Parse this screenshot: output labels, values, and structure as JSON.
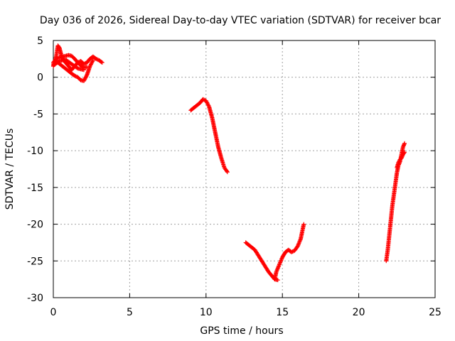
{
  "chart_data": {
    "type": "scatter",
    "title": "Day 036 of 2026, Sidereal Day-to-day VTEC variation (SDTVAR) for receiver bcar",
    "xlabel": "GPS time / hours",
    "ylabel": "SDTVAR / TECUs",
    "xlim": [
      0,
      25
    ],
    "ylim": [
      -30,
      5
    ],
    "xticks": [
      "0",
      "5",
      "10",
      "15",
      "20",
      "25"
    ],
    "yticks": [
      "5",
      "0",
      "-5",
      "-10",
      "-15",
      "-20",
      "-25",
      "-30"
    ],
    "grid": true,
    "marker": "plus",
    "color": "#ff0000",
    "segments": [
      [
        [
          0.0,
          1.5
        ],
        [
          0.1,
          2.0
        ],
        [
          0.2,
          3.0
        ],
        [
          0.3,
          4.3
        ],
        [
          0.4,
          4.0
        ],
        [
          0.5,
          3.2
        ],
        [
          0.6,
          2.5
        ],
        [
          0.8,
          2.0
        ],
        [
          1.0,
          1.5
        ],
        [
          1.2,
          1.0
        ],
        [
          1.4,
          1.5
        ],
        [
          1.6,
          2.0
        ],
        [
          1.8,
          2.2
        ],
        [
          2.0,
          1.8
        ],
        [
          2.2,
          2.0
        ],
        [
          2.4,
          2.5
        ],
        [
          2.6,
          2.8
        ],
        [
          2.8,
          2.5
        ],
        [
          3.0,
          2.3
        ],
        [
          3.2,
          2.0
        ]
      ],
      [
        [
          0.0,
          2.0
        ],
        [
          0.2,
          2.5
        ],
        [
          0.4,
          2.7
        ],
        [
          0.6,
          2.8
        ],
        [
          0.8,
          2.9
        ],
        [
          1.0,
          3.0
        ],
        [
          1.2,
          2.9
        ],
        [
          1.4,
          2.5
        ],
        [
          1.6,
          2.0
        ],
        [
          1.8,
          1.6
        ],
        [
          2.0,
          1.3
        ],
        [
          2.2,
          1.4
        ]
      ],
      [
        [
          0.0,
          1.8
        ],
        [
          0.3,
          2.0
        ],
        [
          0.6,
          1.5
        ],
        [
          0.9,
          1.0
        ],
        [
          1.2,
          0.5
        ],
        [
          1.4,
          0.2
        ],
        [
          1.6,
          0.0
        ],
        [
          1.8,
          -0.4
        ],
        [
          2.0,
          -0.5
        ],
        [
          2.2,
          0.3
        ],
        [
          2.4,
          1.5
        ],
        [
          2.6,
          2.3
        ]
      ],
      [
        [
          0.0,
          1.6
        ],
        [
          0.4,
          2.2
        ],
        [
          0.8,
          2.4
        ],
        [
          1.2,
          1.8
        ],
        [
          1.6,
          1.2
        ],
        [
          2.0,
          1.0
        ]
      ],
      [
        [
          9.0,
          -4.5
        ],
        [
          9.3,
          -4.0
        ],
        [
          9.6,
          -3.5
        ],
        [
          9.8,
          -3.0
        ],
        [
          10.0,
          -3.2
        ],
        [
          10.2,
          -4.0
        ],
        [
          10.4,
          -5.5
        ],
        [
          10.6,
          -7.5
        ],
        [
          10.8,
          -9.5
        ],
        [
          11.0,
          -11.0
        ],
        [
          11.2,
          -12.3
        ],
        [
          11.4,
          -12.9
        ]
      ],
      [
        [
          12.6,
          -22.5
        ],
        [
          12.9,
          -23.0
        ],
        [
          13.2,
          -23.5
        ],
        [
          13.5,
          -24.5
        ],
        [
          13.8,
          -25.5
        ],
        [
          14.1,
          -26.5
        ],
        [
          14.3,
          -27.0
        ],
        [
          14.5,
          -27.5
        ],
        [
          14.7,
          -27.6
        ]
      ],
      [
        [
          14.5,
          -27.5
        ],
        [
          14.6,
          -26.5
        ],
        [
          14.8,
          -25.5
        ],
        [
          15.0,
          -24.5
        ],
        [
          15.2,
          -23.8
        ],
        [
          15.4,
          -23.5
        ],
        [
          15.6,
          -23.8
        ],
        [
          15.8,
          -23.6
        ],
        [
          16.0,
          -23.0
        ],
        [
          16.2,
          -22.0
        ],
        [
          16.3,
          -21.0
        ],
        [
          16.4,
          -20.0
        ]
      ],
      [
        [
          21.8,
          -25.0
        ],
        [
          21.9,
          -23.5
        ],
        [
          22.0,
          -21.5
        ],
        [
          22.1,
          -19.5
        ],
        [
          22.2,
          -17.5
        ],
        [
          22.3,
          -16.0
        ],
        [
          22.4,
          -14.5
        ],
        [
          22.5,
          -13.0
        ],
        [
          22.6,
          -12.0
        ],
        [
          22.7,
          -11.5
        ],
        [
          22.8,
          -10.5
        ],
        [
          22.9,
          -9.5
        ],
        [
          23.0,
          -9.0
        ]
      ],
      [
        [
          22.5,
          -12.3
        ],
        [
          22.6,
          -11.6
        ],
        [
          22.7,
          -11.2
        ],
        [
          22.8,
          -11.0
        ],
        [
          22.9,
          -10.5
        ],
        [
          23.0,
          -10.2
        ]
      ]
    ]
  }
}
